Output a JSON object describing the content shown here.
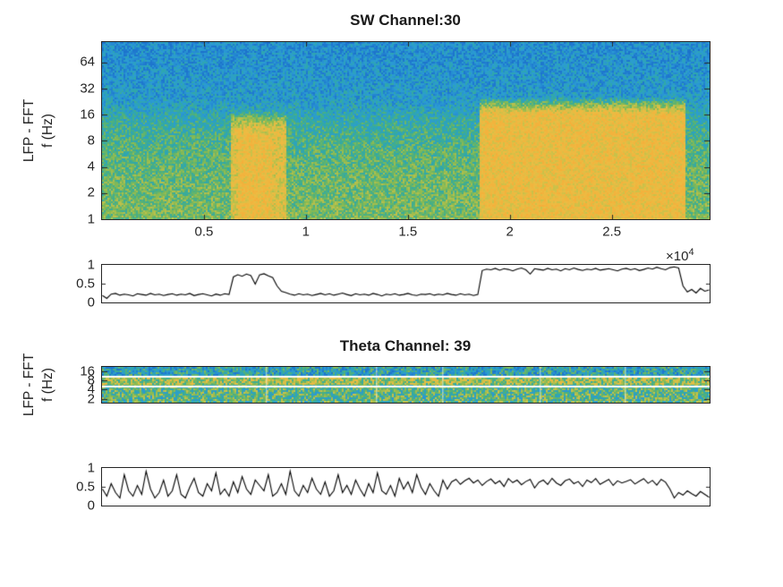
{
  "figure": {
    "background": "#ffffff",
    "axis_color": "#262626",
    "line_color": "#000000"
  },
  "axes_text": {
    "ylabel_line1": "LFP - FFT",
    "ylabel_line2": "f (Hz)",
    "exp_base": "×10",
    "exp_power": "4"
  },
  "chart_data": [
    {
      "type": "heatmap",
      "subtype": "spectrogram",
      "name": "sw-spectrogram",
      "title": "SW Channel:30",
      "ylabel": [
        "LFP - FFT",
        "f (Hz)"
      ],
      "yscale": "log2",
      "ylim_hz": [
        1,
        110
      ],
      "y_ticks": [
        64,
        32,
        16,
        8,
        4,
        2,
        1
      ],
      "xlim": [
        0,
        29800
      ],
      "x_ticks": [
        5000,
        10000,
        15000,
        20000,
        25000
      ],
      "x_tick_labels": [
        "0.5",
        "1",
        "1.5",
        "2",
        "2.5"
      ],
      "x_exponent": 4,
      "freq_power_profile": [
        [
          0,
          0.56
        ],
        [
          1.6,
          0.53
        ],
        [
          2.6,
          0.5
        ],
        [
          3.6,
          0.44
        ],
        [
          4.6,
          0.33
        ],
        [
          6.8,
          0.28
        ]
      ],
      "high_power_regions": [
        {
          "x0": 6300,
          "x1": 9000,
          "f_max_hz": 11,
          "power": 0.74
        },
        {
          "x0": 6700,
          "x1": 8300,
          "f_max_hz": 9,
          "power": 0.8
        },
        {
          "x0": 18500,
          "x1": 28600,
          "f_max_hz": 16,
          "power": 0.8
        }
      ],
      "noise": 0.24,
      "colormap": [
        [
          0,
          "#1254b8"
        ],
        [
          0.22,
          "#1f7ad0"
        ],
        [
          0.32,
          "#2b9bd4"
        ],
        [
          0.42,
          "#2fa8ab"
        ],
        [
          0.5,
          "#51b179"
        ],
        [
          0.58,
          "#8aba52"
        ],
        [
          0.68,
          "#c6c24a"
        ],
        [
          0.78,
          "#ecbc43"
        ],
        [
          0.9,
          "#f4b13c"
        ],
        [
          1,
          "#f6a832"
        ]
      ]
    },
    {
      "type": "line",
      "name": "sw-state-ratio",
      "ylim": [
        0,
        1
      ],
      "y_ticks": [
        "1",
        "0.5",
        "0"
      ],
      "line_color": "#000000",
      "values": [
        0.18,
        0.1,
        0.22,
        0.24,
        0.19,
        0.22,
        0.2,
        0.17,
        0.23,
        0.21,
        0.19,
        0.24,
        0.2,
        0.22,
        0.18,
        0.21,
        0.23,
        0.19,
        0.22,
        0.2,
        0.24,
        0.18,
        0.21,
        0.23,
        0.2,
        0.17,
        0.22,
        0.19,
        0.23,
        0.21,
        0.7,
        0.76,
        0.72,
        0.78,
        0.74,
        0.5,
        0.76,
        0.79,
        0.73,
        0.68,
        0.45,
        0.3,
        0.26,
        0.22,
        0.19,
        0.23,
        0.2,
        0.22,
        0.18,
        0.21,
        0.24,
        0.2,
        0.23,
        0.19,
        0.22,
        0.25,
        0.21,
        0.18,
        0.23,
        0.2,
        0.22,
        0.19,
        0.24,
        0.21,
        0.17,
        0.22,
        0.2,
        0.23,
        0.19,
        0.21,
        0.24,
        0.2,
        0.18,
        0.22,
        0.21,
        0.23,
        0.19,
        0.22,
        0.2,
        0.24,
        0.21,
        0.19,
        0.23,
        0.2,
        0.22,
        0.18,
        0.21,
        0.88,
        0.92,
        0.9,
        0.94,
        0.89,
        0.93,
        0.91,
        0.87,
        0.92,
        0.95,
        0.9,
        0.78,
        0.93,
        0.91,
        0.89,
        0.94,
        0.9,
        0.92,
        0.87,
        0.93,
        0.9,
        0.95,
        0.91,
        0.88,
        0.92,
        0.9,
        0.94,
        0.89,
        0.91,
        0.93,
        0.9,
        0.87,
        0.92,
        0.94,
        0.9,
        0.93,
        0.88,
        0.91,
        0.95,
        0.92,
        0.97,
        0.93,
        0.9,
        0.96,
        0.98,
        0.95,
        0.45,
        0.28,
        0.35,
        0.25,
        0.38,
        0.3,
        0.34
      ]
    },
    {
      "type": "heatmap",
      "subtype": "spectrogram",
      "name": "theta-spectrogram",
      "title": "Theta Channel: 39",
      "ylabel": [
        "LFP - FFT",
        "f (Hz)"
      ],
      "yscale": "log2",
      "ylim_hz": [
        1.5,
        22
      ],
      "y_ticks": [
        16,
        8,
        4,
        2
      ],
      "bands": [
        {
          "f0_hz": 11,
          "f1_hz": 22,
          "power": 0.38
        },
        {
          "f0_hz": 5.5,
          "f1_hz": 11,
          "power": 0.62
        },
        {
          "f0_hz": 1.5,
          "f1_hz": 5.5,
          "power": 0.5
        }
      ],
      "separator_lines_hz": [
        11,
        5.5
      ],
      "vertical_streaks": [
        0.27,
        0.45,
        0.56,
        0.72,
        0.86
      ],
      "noise": 0.4,
      "colormap": [
        [
          0,
          "#1254b8"
        ],
        [
          0.22,
          "#1f7ad0"
        ],
        [
          0.32,
          "#2b9bd4"
        ],
        [
          0.42,
          "#2fa8ab"
        ],
        [
          0.5,
          "#51b179"
        ],
        [
          0.58,
          "#8aba52"
        ],
        [
          0.68,
          "#c6c24a"
        ],
        [
          0.78,
          "#ecbc43"
        ],
        [
          0.9,
          "#f4b13c"
        ],
        [
          1,
          "#f6a832"
        ]
      ]
    },
    {
      "type": "line",
      "name": "theta-state-ratio",
      "ylim": [
        0,
        1
      ],
      "y_ticks": [
        "1",
        "0.5",
        "0"
      ],
      "line_color": "#000000",
      "values": [
        0.45,
        0.25,
        0.6,
        0.35,
        0.2,
        0.85,
        0.4,
        0.25,
        0.55,
        0.3,
        0.95,
        0.45,
        0.2,
        0.35,
        0.7,
        0.25,
        0.4,
        0.85,
        0.3,
        0.2,
        0.5,
        0.75,
        0.35,
        0.25,
        0.6,
        0.4,
        0.9,
        0.3,
        0.45,
        0.25,
        0.65,
        0.35,
        0.8,
        0.45,
        0.3,
        0.7,
        0.55,
        0.4,
        0.85,
        0.25,
        0.35,
        0.6,
        0.3,
        0.95,
        0.4,
        0.25,
        0.55,
        0.35,
        0.75,
        0.45,
        0.3,
        0.65,
        0.25,
        0.4,
        0.85,
        0.35,
        0.55,
        0.3,
        0.7,
        0.45,
        0.25,
        0.6,
        0.35,
        0.9,
        0.4,
        0.3,
        0.55,
        0.25,
        0.75,
        0.45,
        0.65,
        0.35,
        0.85,
        0.5,
        0.3,
        0.6,
        0.4,
        0.25,
        0.7,
        0.45,
        0.65,
        0.72,
        0.58,
        0.68,
        0.75,
        0.62,
        0.7,
        0.55,
        0.66,
        0.73,
        0.6,
        0.68,
        0.52,
        0.74,
        0.63,
        0.7,
        0.57,
        0.66,
        0.72,
        0.48,
        0.64,
        0.7,
        0.58,
        0.75,
        0.62,
        0.55,
        0.68,
        0.73,
        0.6,
        0.66,
        0.52,
        0.7,
        0.63,
        0.74,
        0.58,
        0.65,
        0.72,
        0.55,
        0.68,
        0.62,
        0.66,
        0.71,
        0.59,
        0.67,
        0.74,
        0.61,
        0.69,
        0.56,
        0.72,
        0.64,
        0.45,
        0.2,
        0.35,
        0.28,
        0.4,
        0.32,
        0.25,
        0.38,
        0.3,
        0.22
      ]
    }
  ]
}
